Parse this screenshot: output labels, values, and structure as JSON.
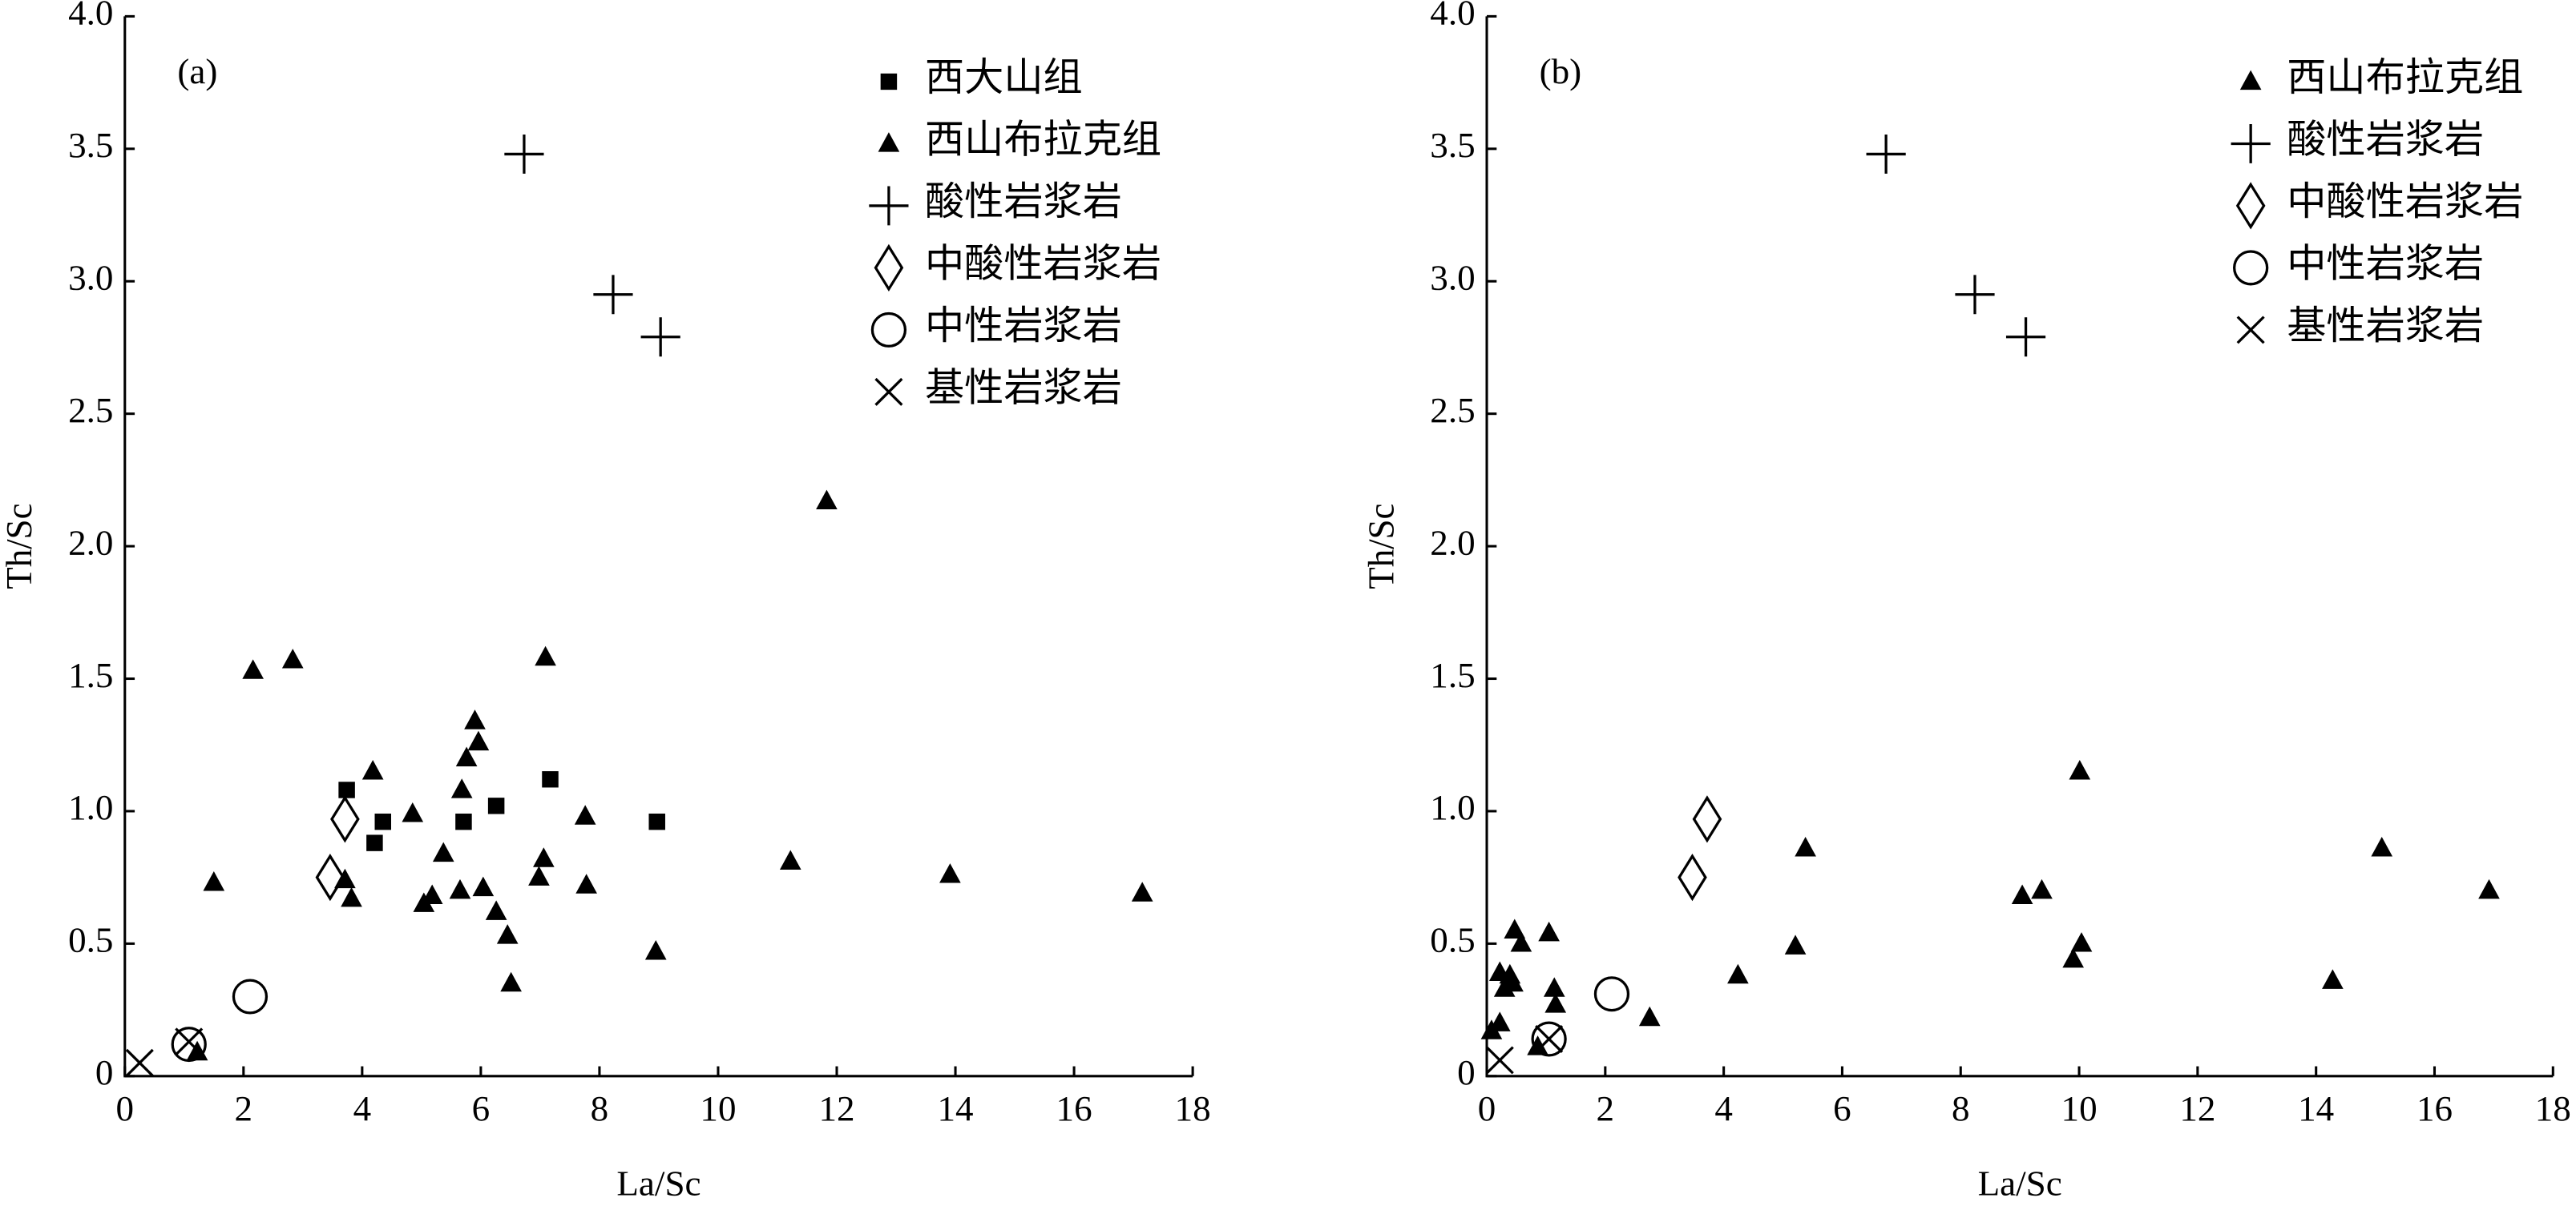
{
  "chart_data": [
    {
      "type": "scatter",
      "panel_label": "(a)",
      "x_label": "La/Sc",
      "y_label": "Th/Sc",
      "xlim": [
        0,
        18
      ],
      "ylim": [
        0,
        4
      ],
      "xticks": [
        0,
        2,
        4,
        6,
        8,
        10,
        12,
        14,
        16,
        18
      ],
      "yticks": [
        0,
        0.5,
        {
          "value": 1,
          "label": "1.0"
        },
        1.5,
        {
          "value": 2,
          "label": "2.0"
        },
        2.5,
        {
          "value": 3,
          "label": "3.0"
        },
        3.5,
        {
          "value": 4,
          "label": "4.0"
        }
      ],
      "legend_position": "upper right",
      "series": [
        {
          "name": "西大山组",
          "marker": "square",
          "color": "#000000",
          "x": [
            3.74,
            4.21,
            4.35,
            5.71,
            6.26,
            7.17,
            8.97
          ],
          "y": [
            1.08,
            0.88,
            0.96,
            0.96,
            1.02,
            1.12,
            0.96
          ]
        },
        {
          "name": "西山布拉克组",
          "marker": "triangle",
          "color": "#000000",
          "x": [
            1.22,
            1.5,
            2.16,
            2.83,
            3.71,
            3.82,
            4.18,
            4.85,
            5.04,
            5.18,
            5.37,
            5.65,
            5.68,
            5.76,
            5.9,
            5.96,
            6.04,
            6.26,
            6.45,
            6.51,
            6.98,
            7.06,
            7.09,
            7.76,
            7.78,
            8.95,
            11.22,
            11.83,
            13.91,
            17.15
          ],
          "y": [
            0.09,
            0.73,
            1.53,
            1.57,
            0.74,
            0.67,
            1.15,
            0.99,
            0.65,
            0.68,
            0.84,
            0.7,
            1.08,
            1.2,
            1.34,
            1.26,
            0.71,
            0.62,
            0.53,
            0.35,
            0.75,
            0.82,
            1.58,
            0.98,
            0.72,
            0.47,
            0.81,
            2.17,
            0.76,
            0.69
          ]
        },
        {
          "name": "酸性岩浆岩",
          "marker": "plus",
          "color": "#000000",
          "x": [
            6.73,
            8.23,
            9.03
          ],
          "y": [
            3.48,
            2.95,
            2.79
          ]
        },
        {
          "name": "中酸性岩浆岩",
          "marker": "diamond",
          "color": "#000000",
          "x": [
            3.46,
            3.71
          ],
          "y": [
            0.75,
            0.97
          ]
        },
        {
          "name": "中性岩浆岩",
          "marker": "circle",
          "color": "#000000",
          "x": [
            2.11,
            1.08
          ],
          "y": [
            0.3,
            0.12
          ]
        },
        {
          "name": "基性岩浆岩",
          "marker": "x",
          "color": "#000000",
          "x": [
            0.25,
            1.08
          ],
          "y": [
            0.05,
            0.13
          ]
        }
      ]
    },
    {
      "type": "scatter",
      "panel_label": "(b)",
      "x_label": "La/Sc",
      "y_label": "Th/Sc",
      "xlim": [
        0,
        18
      ],
      "ylim": [
        0,
        4
      ],
      "xticks": [
        0,
        2,
        4,
        6,
        8,
        10,
        12,
        14,
        16,
        18
      ],
      "yticks": [
        0,
        0.5,
        {
          "value": 1,
          "label": "1.0"
        },
        1.5,
        {
          "value": 2,
          "label": "2.0"
        },
        2.5,
        {
          "value": 3,
          "label": "3.0"
        },
        3.5,
        {
          "value": 4,
          "label": "4.0"
        }
      ],
      "legend_position": "upper right",
      "series": [
        {
          "name": "西山布拉克组",
          "marker": "triangle",
          "color": "#000000",
          "x": [
            0.08,
            0.22,
            0.22,
            0.3,
            0.39,
            0.44,
            0.47,
            0.58,
            0.86,
            1.05,
            1.14,
            1.16,
            2.75,
            4.24,
            5.21,
            5.38,
            9.04,
            9.37,
            9.9,
            10.04,
            10.01,
            14.28,
            15.11,
            16.92
          ],
          "y": [
            0.17,
            0.2,
            0.39,
            0.33,
            0.38,
            0.35,
            0.55,
            0.5,
            0.11,
            0.54,
            0.33,
            0.27,
            0.22,
            0.38,
            0.49,
            0.86,
            0.68,
            0.7,
            0.44,
            0.5,
            1.15,
            0.36,
            0.86,
            0.7
          ]
        },
        {
          "name": "酸性岩浆岩",
          "marker": "plus",
          "color": "#000000",
          "x": [
            6.74,
            8.24,
            9.1
          ],
          "y": [
            3.48,
            2.95,
            2.79
          ]
        },
        {
          "name": "中酸性岩浆岩",
          "marker": "diamond",
          "color": "#000000",
          "x": [
            3.47,
            3.72
          ],
          "y": [
            0.75,
            0.97
          ]
        },
        {
          "name": "中性岩浆岩",
          "marker": "circle",
          "color": "#000000",
          "x": [
            2.11,
            1.05
          ],
          "y": [
            0.31,
            0.14
          ]
        },
        {
          "name": "基性岩浆岩",
          "marker": "x",
          "color": "#000000",
          "x": [
            0.22,
            1.05
          ],
          "y": [
            0.06,
            0.14
          ]
        }
      ]
    }
  ]
}
